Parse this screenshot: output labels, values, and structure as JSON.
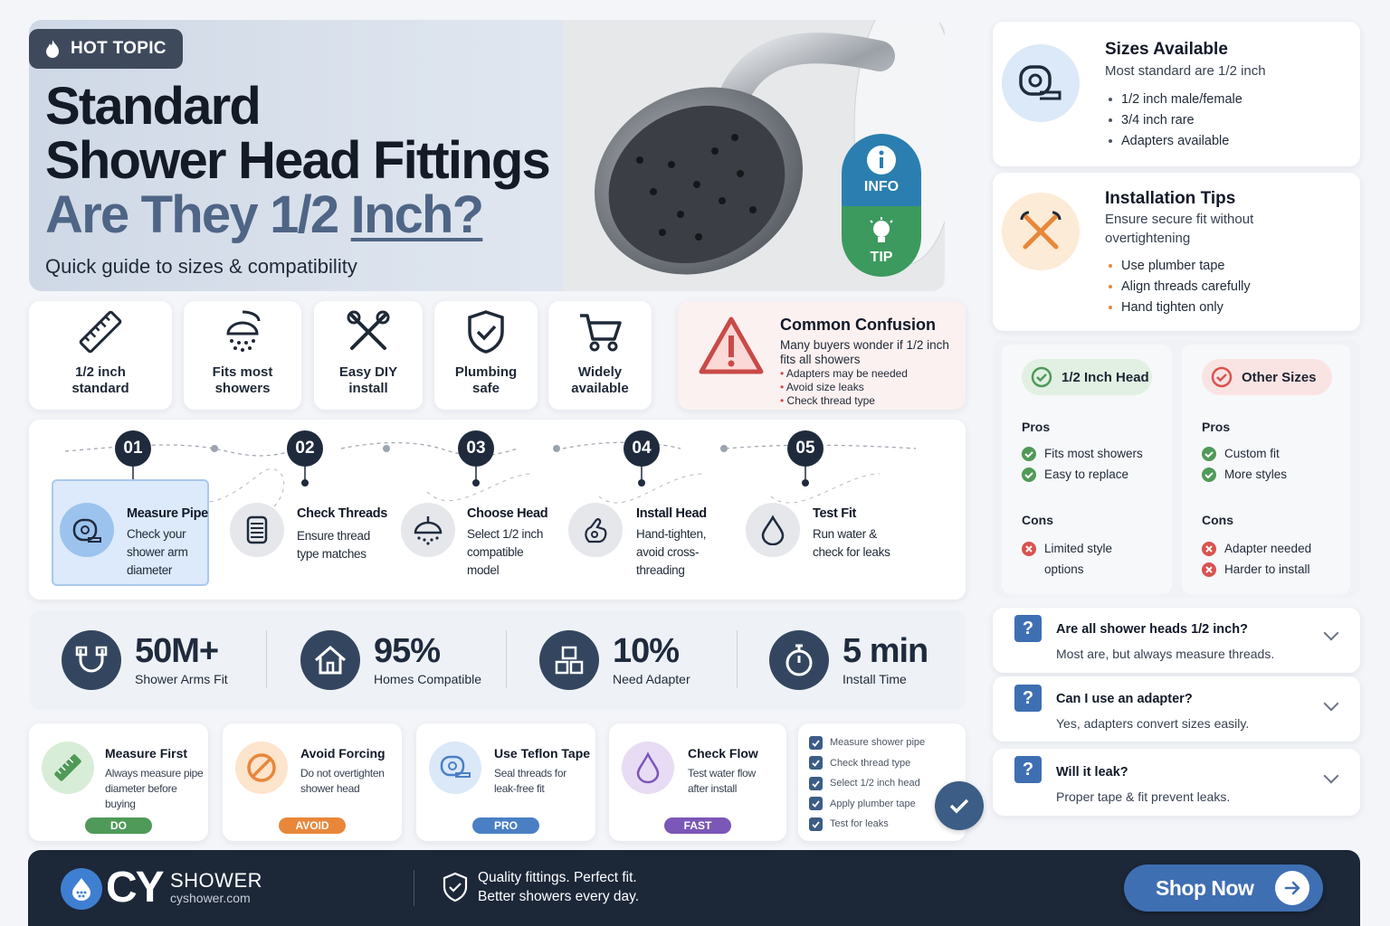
{
  "hero": {
    "badge": "HOT TOPIC",
    "title_line1": "Standard",
    "title_line2": "Shower Head Fittings",
    "title_line3_a": "Are They 1/2 ",
    "title_line3_b": "Inch?",
    "subtitle": "Quick guide to sizes & compatibility",
    "info_label": "INFO",
    "tip_label": "TIP"
  },
  "features": [
    {
      "icon": "ruler-icon",
      "line1": "1/2 inch",
      "line2": "standard"
    },
    {
      "icon": "shower-head-icon",
      "line1": "Fits most",
      "line2": "showers"
    },
    {
      "icon": "tools-icon",
      "line1": "Easy DIY",
      "line2": "install"
    },
    {
      "icon": "shield-check-icon",
      "line1": "Plumbing",
      "line2": "safe"
    },
    {
      "icon": "cart-icon",
      "line1": "Widely",
      "line2": "available"
    }
  ],
  "confusion": {
    "title": "Common Confusion",
    "desc1": "Many buyers wonder if 1/2 inch",
    "desc2": "fits all showers",
    "bullets": [
      "Adapters may be needed",
      "Avoid size leaks",
      "Check thread type"
    ]
  },
  "steps": [
    {
      "num": "01",
      "title": "Measure Pipe",
      "desc": [
        "Check your",
        "shower arm",
        "diameter"
      ]
    },
    {
      "num": "02",
      "title": "Check Threads",
      "desc": [
        "Ensure thread",
        "type matches"
      ]
    },
    {
      "num": "03",
      "title": "Choose Head",
      "desc": [
        "Select 1/2 inch",
        "compatible",
        "model"
      ]
    },
    {
      "num": "04",
      "title": "Install Head",
      "desc": [
        "Hand-tighten,",
        "avoid cross-",
        "threading"
      ]
    },
    {
      "num": "05",
      "title": "Test Fit",
      "desc": [
        "Run water &",
        "check for leaks"
      ]
    }
  ],
  "stats": [
    {
      "value": "50M+",
      "label": "Shower Arms Fit"
    },
    {
      "value": "95%",
      "label": "Homes Compatible"
    },
    {
      "value": "10%",
      "label": "Need Adapter"
    },
    {
      "value": "5 min",
      "label": "Install Time"
    }
  ],
  "tips": [
    {
      "title": "Measure First",
      "desc": [
        "Always measure pipe",
        "diameter before buying"
      ],
      "badge": "DO",
      "color": "#4f9a58"
    },
    {
      "title": "Avoid Forcing",
      "desc": [
        "Do not overtighten",
        "shower head"
      ],
      "badge": "AVOID",
      "color": "#e8873a"
    },
    {
      "title": "Use Teflon Tape",
      "desc": [
        "Seal threads for",
        "leak-free fit"
      ],
      "badge": "PRO",
      "color": "#4a7fc4"
    },
    {
      "title": "Check Flow",
      "desc": [
        "Test water flow",
        "after install"
      ],
      "badge": "FAST",
      "color": "#7b57b7"
    }
  ],
  "checklist": [
    "Measure shower pipe",
    "Check thread type",
    "Select 1/2 inch head",
    "Apply plumber tape",
    "Test for leaks"
  ],
  "sizes": {
    "title": "Sizes Available",
    "subtitle": "Most standard are 1/2 inch",
    "items": [
      "1/2 inch male/female",
      "3/4 inch rare",
      "Adapters available"
    ]
  },
  "install": {
    "title": "Installation Tips",
    "subtitle1": "Ensure secure fit without",
    "subtitle2": "overtightening",
    "items": [
      "Use plumber tape",
      "Align threads carefully",
      "Hand tighten only"
    ]
  },
  "compare": {
    "left": {
      "title": "1/2 Inch Head",
      "pros_label": "Pros",
      "pros": [
        "Fits most showers",
        "Easy to replace"
      ],
      "cons_label": "Cons",
      "cons": [
        "Limited style",
        "options"
      ]
    },
    "right": {
      "title": "Other Sizes",
      "pros_label": "Pros",
      "pros": [
        "Custom fit",
        "More styles"
      ],
      "cons_label": "Cons",
      "cons": [
        "Adapter needed",
        "Harder to install"
      ]
    }
  },
  "faq": [
    {
      "q": "Are all shower heads 1/2 inch?",
      "a": "Most are, but always measure threads."
    },
    {
      "q": "Can I use an adapter?",
      "a": "Yes, adapters convert sizes easily."
    },
    {
      "q": "Will it leak?",
      "a": "Proper tape & fit prevent leaks."
    }
  ],
  "footer": {
    "brand_cy": "CY",
    "brand_name": "SHOWER",
    "url": "cyshower.com",
    "tagline1": "Quality fittings. Perfect fit.",
    "tagline2": "Better showers every day.",
    "cta": "Shop Now"
  }
}
